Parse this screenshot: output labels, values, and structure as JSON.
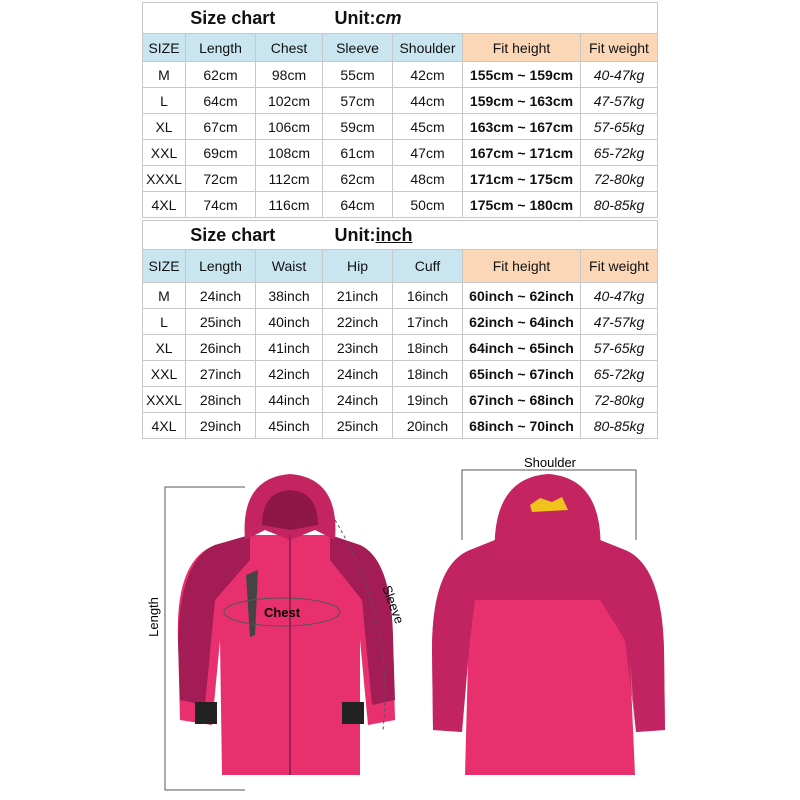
{
  "tables": [
    {
      "title": "Size chart",
      "unit_label": "Unit:",
      "unit": "cm",
      "columns": [
        "SIZE",
        "Length",
        "Chest",
        "Sleeve",
        "Shoulder",
        "Fit height",
        "Fit weight"
      ],
      "rows": [
        [
          "M",
          "62cm",
          "98cm",
          "55cm",
          "42cm",
          "155cm ~ 159cm",
          "40-47kg"
        ],
        [
          "L",
          "64cm",
          "102cm",
          "57cm",
          "44cm",
          "159cm ~ 163cm",
          "47-57kg"
        ],
        [
          "XL",
          "67cm",
          "106cm",
          "59cm",
          "45cm",
          "163cm ~ 167cm",
          "57-65kg"
        ],
        [
          "XXL",
          "69cm",
          "108cm",
          "61cm",
          "47cm",
          "167cm ~ 171cm",
          "65-72kg"
        ],
        [
          "XXXL",
          "72cm",
          "112cm",
          "62cm",
          "48cm",
          "171cm ~ 175cm",
          "72-80kg"
        ],
        [
          "4XL",
          "74cm",
          "116cm",
          "64cm",
          "50cm",
          "175cm ~ 180cm",
          "80-85kg"
        ]
      ]
    },
    {
      "title": "Size chart",
      "unit_label": "Unit:",
      "unit": "inch",
      "columns": [
        "SIZE",
        "Length",
        "Waist",
        "Hip",
        "Cuff",
        "Fit height",
        "Fit weight"
      ],
      "rows": [
        [
          "M",
          "24inch",
          "38inch",
          "21inch",
          "16inch",
          "60inch ~ 62inch",
          "40-47kg"
        ],
        [
          "L",
          "25inch",
          "40inch",
          "22inch",
          "17inch",
          "62inch ~ 64inch",
          "47-57kg"
        ],
        [
          "XL",
          "26inch",
          "41inch",
          "23inch",
          "18inch",
          "64inch ~ 65inch",
          "57-65kg"
        ],
        [
          "XXL",
          "27inch",
          "42inch",
          "24inch",
          "18inch",
          "65inch ~ 67inch",
          "65-72kg"
        ],
        [
          "XXXL",
          "28inch",
          "44inch",
          "24inch",
          "19inch",
          "67inch ~ 68inch",
          "72-80kg"
        ],
        [
          "4XL",
          "29inch",
          "45inch",
          "25inch",
          "20inch",
          "68inch ~ 70inch",
          "80-85kg"
        ]
      ]
    }
  ],
  "diagram": {
    "chest": "Chest",
    "sleeve": "Sleeve",
    "length": "Length",
    "shoulder": "Shoulder"
  }
}
